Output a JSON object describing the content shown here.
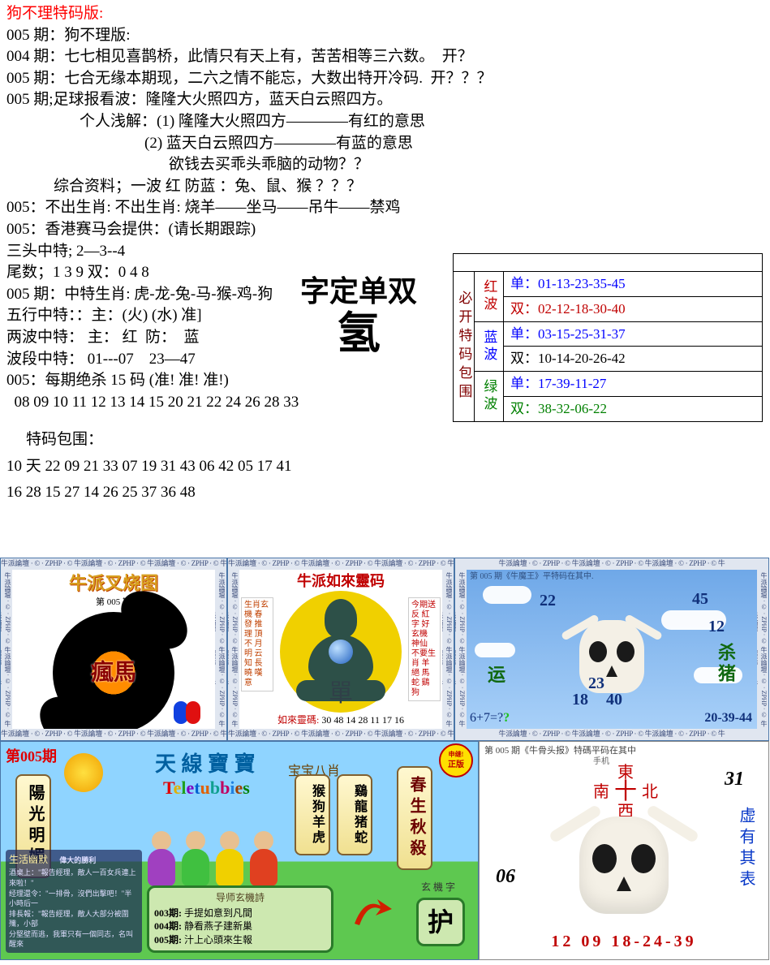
{
  "header": {
    "title": "狗不理特码版:",
    "lines": [
      "005 期：狗不理版:",
      "004 期：七七相见喜鹊桥，此情只有天上有，苦苦相等三六数。  开？",
      "005 期：七合无缘本期现，二六之情不能忘，大数出特开冷码.  开？？？",
      "005 期;足球报看波：隆隆大火照四方，蓝天白云照四方。"
    ],
    "sub1": "个人浅解：(1) 隆隆大火照四方————有红的意思",
    "sub2": "(2) 蓝天白云照四方————有蓝的意思",
    "sub3": "欲钱去买乖头乖脑的动物？？",
    "sub4": "综合资料；一波 红 防蓝 ：兔、鼠、猴 ？？？",
    "lines2": [
      "005：不出生肖: 不出生肖: 烧羊——坐马——吊牛——禁鸡",
      "005：香港赛马会提供：(请长期跟踪)",
      "三头中特; 2—3--4",
      "尾数；1 3 9 双：0 4 8",
      "005 期：中特生肖: 虎-龙-兔-马-猴-鸡-狗",
      "五行中特：：主：(火) (水) 准]",
      "两波中特： 主： 红  防：  蓝",
      "波段中特： 01---07    23—47",
      "005：每期绝杀 15 码 (准! 准! 准!)",
      "  08 09 10 11 12 13 14 15 20 21 22 24 26 28 33"
    ]
  },
  "center": {
    "line1": "字定单双",
    "line2": "氢"
  },
  "table": {
    "left_label": "必开特码包围",
    "waves": [
      {
        "name": "红波",
        "name_color": "#c00000",
        "rows": [
          {
            "text": "单：01-13-23-35-45",
            "color": "#0000ff"
          },
          {
            "text": "双：02-12-18-30-40",
            "color": "#c00000"
          }
        ]
      },
      {
        "name": "蓝波",
        "name_color": "#0000ff",
        "rows": [
          {
            "text": "单：03-15-25-31-37",
            "color": "#0000ff"
          },
          {
            "text": "双：10-14-20-26-42",
            "color": "#000000"
          }
        ]
      },
      {
        "name": "绿波",
        "name_color": "#008000",
        "rows": [
          {
            "text": "单：17-39-11-27",
            "color": "#0000ff"
          },
          {
            "text": "双：38-32-06-22",
            "color": "#008000"
          }
        ]
      }
    ]
  },
  "nums": {
    "heading": "特码包围：",
    "row1": "10 天 22 09 21 33  07 19 31 43 06 42 05 17 41",
    "row2": "16 28 15 27 14 26 25 37 36 48"
  },
  "zphp_text": "牛派論壇 · © · ZPHP · © 牛派論壇 · © · ZPHP · © 牛派論壇 · © · ZPHP · © 牛",
  "card1": {
    "title": "牛派叉烧图",
    "issue": "第 005 期",
    "center": "瘋馬"
  },
  "card2": {
    "title": "牛派如來靈码",
    "left_note": "生肖玄機\n春 發\n推 理\n頂 不\n月 明\n云 知\n長 曉\n嘆 意",
    "right_note": "今期送反\n紅字\n好玄機\n神仙\n不要生肖\n羊 絕\n馬 蛇\n鷄 狗",
    "dan": "單",
    "bottom_label": "如來靈碼:",
    "bottom_nums": "30 48 14 28 11 17 16"
  },
  "card3": {
    "top": "第 005 期《牛魔王》平特码在其中.",
    "n22": "22",
    "n45": "45",
    "n12": "12",
    "n23": "23",
    "n18": "18",
    "n40": "40",
    "txt_left": "运",
    "txt_right": "杀猪",
    "math": "6+7=?",
    "bottom": "20-39-44"
  },
  "card4": {
    "issue": "第005期",
    "title": "天 線 寶 寶",
    "logo": "Teletubbies",
    "baba": "宝宝八肖",
    "vb1": "陽光明媚",
    "vb2": "猴狗羊虎",
    "vb3": "鷄龍猪蛇",
    "vb4": "春生秋殺",
    "stamp_top": "申继!",
    "stamp": "正版",
    "life_title": "生活幽默",
    "life_sub": "偉大的勝利",
    "life_body": "酒桌上：\"報告經理，敵人一百女兵連上來啦！\"\n经理還令：\"一排骨，沒們出擊吧！\"半小時后一\n排長報：\"報告經理，敵人大部分被圍殲，小部\n分堅壁而逃，我軍只有一個同志，名叫醒來",
    "poem_title": "导师玄機詩",
    "poems": [
      {
        "n": "003期:",
        "t": "手提如意到凡間"
      },
      {
        "n": "004期:",
        "t": "静看燕子建新巢"
      },
      {
        "n": "005期:",
        "t": "汁上心頭來生報"
      }
    ],
    "hu_small": "玄 機 字",
    "hu": "护"
  },
  "card5": {
    "top": "第 005 期《牛骨头报》特碼平码在其中",
    "sub": "手机",
    "compass": {
      "e": "東",
      "n": "南",
      "s": "北",
      "w": "西"
    },
    "n31": "31",
    "n06": "06",
    "vtext": "虚有其表",
    "bottom": "12  09   18-24-39"
  }
}
